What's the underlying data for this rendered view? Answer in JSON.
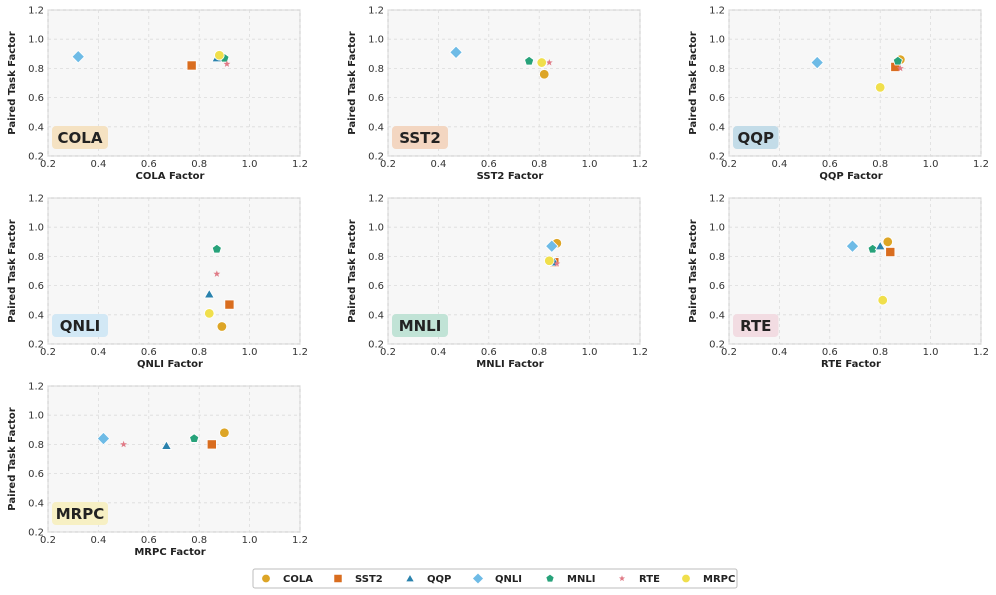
{
  "chart_data": {
    "type": "scatter",
    "xlim": [
      0.2,
      1.2
    ],
    "ylim": [
      0.2,
      1.2
    ],
    "xticks": [
      "0.2",
      "0.4",
      "0.6",
      "0.8",
      "1.0",
      "1.2"
    ],
    "yticks": [
      "0.2",
      "0.4",
      "0.6",
      "0.8",
      "1.0",
      "1.2"
    ],
    "ylabel": "Paired Task Factor",
    "grid": true,
    "legend_position": "bottom-center",
    "series": [
      {
        "name": "COLA",
        "marker": "circle",
        "color": "#DDA526"
      },
      {
        "name": "SST2",
        "marker": "square",
        "color": "#D96D1F"
      },
      {
        "name": "QQP",
        "marker": "triangle",
        "color": "#2A82AD"
      },
      {
        "name": "QNLI",
        "marker": "diamond",
        "color": "#6EBBE6"
      },
      {
        "name": "MNLI",
        "marker": "pentagon",
        "color": "#27A27A"
      },
      {
        "name": "RTE",
        "marker": "star",
        "color": "#E07A86"
      },
      {
        "name": "MRPC",
        "marker": "circle",
        "color": "#F0DF4C"
      }
    ],
    "panels": [
      {
        "task": "COLA",
        "xlabel": "COLA Factor",
        "badge_color": "#F5E2C2",
        "points": [
          {
            "series": "QNLI",
            "x": 0.32,
            "y": 0.88
          },
          {
            "series": "SST2",
            "x": 0.77,
            "y": 0.82
          },
          {
            "series": "QQP",
            "x": 0.87,
            "y": 0.87
          },
          {
            "series": "MNLI",
            "x": 0.9,
            "y": 0.87
          },
          {
            "series": "RTE",
            "x": 0.91,
            "y": 0.83
          },
          {
            "series": "COLA",
            "x": 0.88,
            "y": 0.89
          },
          {
            "series": "MRPC",
            "x": 0.88,
            "y": 0.89
          }
        ]
      },
      {
        "task": "SST2",
        "xlabel": "SST2 Factor",
        "badge_color": "#F3D6C1",
        "points": [
          {
            "series": "QNLI",
            "x": 0.47,
            "y": 0.91
          },
          {
            "series": "MNLI",
            "x": 0.76,
            "y": 0.85
          },
          {
            "series": "RTE",
            "x": 0.84,
            "y": 0.84
          },
          {
            "series": "MRPC",
            "x": 0.81,
            "y": 0.84
          },
          {
            "series": "COLA",
            "x": 0.82,
            "y": 0.76
          }
        ]
      },
      {
        "task": "QQP",
        "xlabel": "QQP Factor",
        "badge_color": "#C3DCE8",
        "points": [
          {
            "series": "QNLI",
            "x": 0.55,
            "y": 0.84
          },
          {
            "series": "MRPC",
            "x": 0.8,
            "y": 0.67
          },
          {
            "series": "SST2",
            "x": 0.86,
            "y": 0.81
          },
          {
            "series": "RTE",
            "x": 0.88,
            "y": 0.8
          },
          {
            "series": "COLA",
            "x": 0.88,
            "y": 0.86
          },
          {
            "series": "MNLI",
            "x": 0.87,
            "y": 0.85
          }
        ]
      },
      {
        "task": "QNLI",
        "xlabel": "QNLI Factor",
        "badge_color": "#D2E8F5",
        "points": [
          {
            "series": "MNLI",
            "x": 0.87,
            "y": 0.85
          },
          {
            "series": "RTE",
            "x": 0.87,
            "y": 0.68
          },
          {
            "series": "QQP",
            "x": 0.84,
            "y": 0.54
          },
          {
            "series": "SST2",
            "x": 0.92,
            "y": 0.47
          },
          {
            "series": "MRPC",
            "x": 0.84,
            "y": 0.41
          },
          {
            "series": "COLA",
            "x": 0.89,
            "y": 0.32
          }
        ]
      },
      {
        "task": "MNLI",
        "xlabel": "MNLI Factor",
        "badge_color": "#C1E3D6",
        "points": [
          {
            "series": "COLA",
            "x": 0.87,
            "y": 0.89
          },
          {
            "series": "QNLI",
            "x": 0.85,
            "y": 0.87
          },
          {
            "series": "SST2",
            "x": 0.86,
            "y": 0.76
          },
          {
            "series": "QQP",
            "x": 0.86,
            "y": 0.76
          },
          {
            "series": "RTE",
            "x": 0.87,
            "y": 0.75
          },
          {
            "series": "MRPC",
            "x": 0.84,
            "y": 0.77
          }
        ]
      },
      {
        "task": "RTE",
        "xlabel": "RTE Factor",
        "badge_color": "#F2DCE2",
        "points": [
          {
            "series": "QNLI",
            "x": 0.69,
            "y": 0.87
          },
          {
            "series": "MNLI",
            "x": 0.77,
            "y": 0.85
          },
          {
            "series": "QQP",
            "x": 0.8,
            "y": 0.87
          },
          {
            "series": "COLA",
            "x": 0.83,
            "y": 0.9
          },
          {
            "series": "SST2",
            "x": 0.84,
            "y": 0.83
          },
          {
            "series": "MRPC",
            "x": 0.81,
            "y": 0.5
          }
        ]
      },
      {
        "task": "MRPC",
        "xlabel": "MRPC Factor",
        "badge_color": "#F7F0C4",
        "points": [
          {
            "series": "QNLI",
            "x": 0.42,
            "y": 0.84
          },
          {
            "series": "RTE",
            "x": 0.5,
            "y": 0.8
          },
          {
            "series": "QQP",
            "x": 0.67,
            "y": 0.79
          },
          {
            "series": "MNLI",
            "x": 0.78,
            "y": 0.84
          },
          {
            "series": "SST2",
            "x": 0.85,
            "y": 0.8
          },
          {
            "series": "COLA",
            "x": 0.9,
            "y": 0.88
          }
        ]
      }
    ]
  }
}
